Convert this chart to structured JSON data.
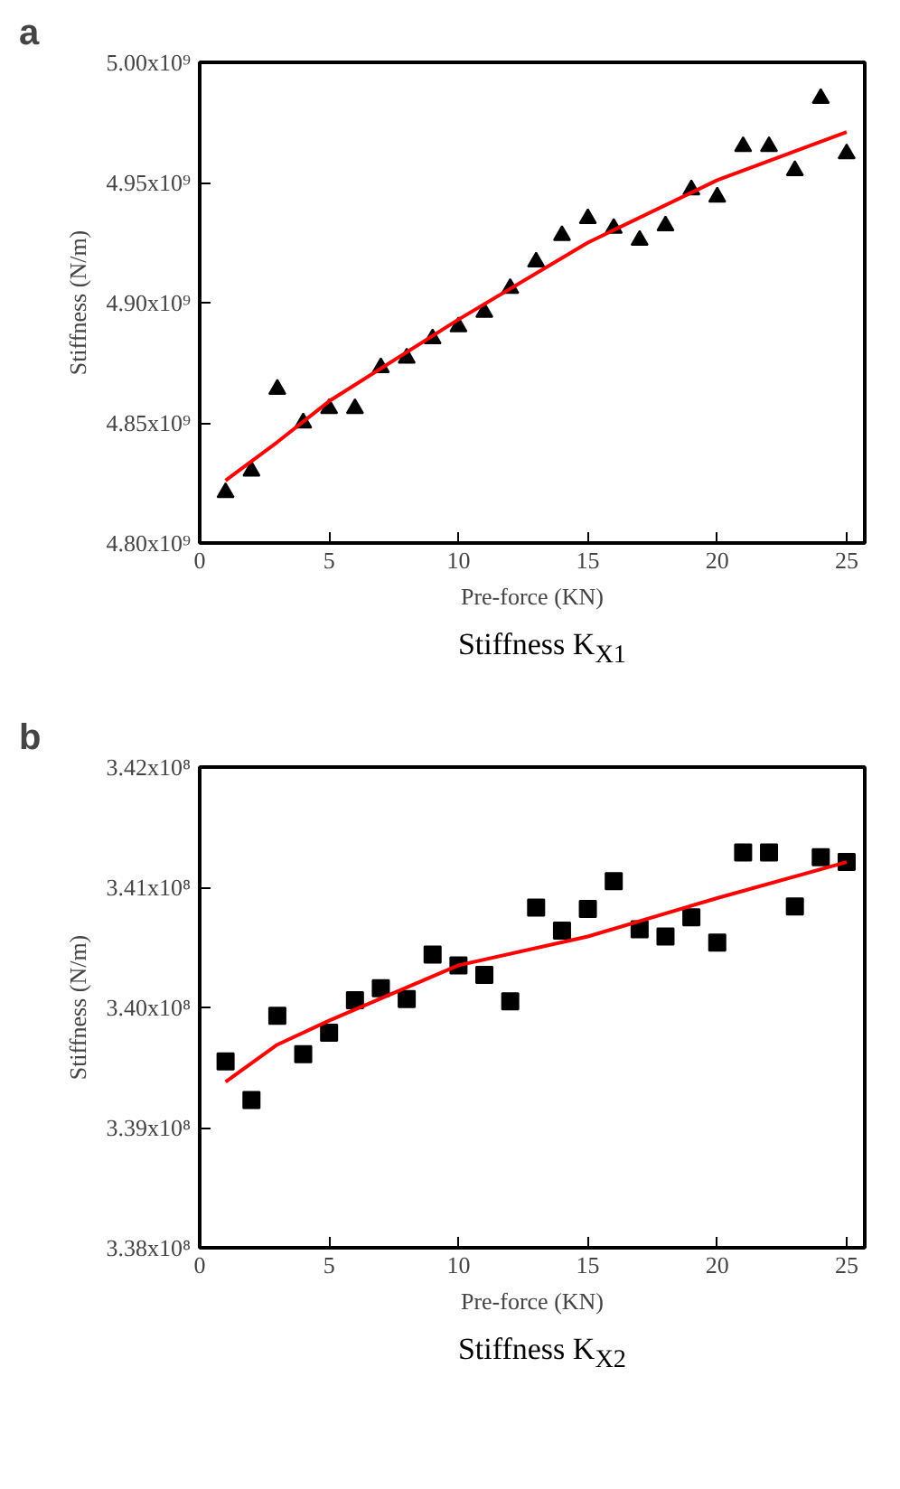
{
  "chart_data": [
    {
      "type": "scatter",
      "title": "a",
      "xlabel": "Pre-force (KN)",
      "ylabel": "Stiffness (N/m)",
      "annotations": [
        "Stiffness K$_{X1}$"
      ],
      "xlim": [
        0,
        25.7
      ],
      "xticks": [
        0,
        5,
        10,
        15,
        20,
        25
      ],
      "ylim": [
        4800000000.0,
        5000000000.0
      ],
      "yticks": [
        {
          "value": 4800000000.0,
          "label": "4.80x10⁹"
        },
        {
          "value": 4850000000.0,
          "label": "4.85x10⁹"
        },
        {
          "value": 4900000000.0,
          "label": "4.90x10⁹"
        },
        {
          "value": 4950000000.0,
          "label": "4.95x10⁹"
        },
        {
          "value": 5000000000.0,
          "label": "5.00x10⁹"
        }
      ],
      "series": [
        {
          "marker": "triangle",
          "color": "#000000",
          "x": [
            1,
            2,
            3,
            4,
            5,
            6,
            7,
            8,
            9,
            10,
            11,
            12,
            13,
            14,
            15,
            16,
            17,
            18,
            19,
            20,
            21,
            22,
            23,
            24,
            25
          ],
          "values": [
            4821000000.0,
            4830000000.0,
            4864000000.0,
            4850000000.0,
            4856000000.0,
            4856000000.0,
            4873000000.0,
            4877000000.0,
            4885000000.0,
            4890000000.0,
            4896000000.0,
            4906000000.0,
            4917000000.0,
            4928000000.0,
            4935000000.0,
            4931000000.0,
            4926000000.0,
            4932000000.0,
            4947000000.0,
            4944000000.0,
            4965000000.0,
            4965000000.0,
            4955000000.0,
            4985000000.0,
            4962000000.0
          ]
        },
        {
          "type": "line",
          "color": "#ff0000",
          "x": [
            1,
            3,
            5,
            10,
            15,
            20,
            25
          ],
          "values": [
            4826000000.0,
            4842000000.0,
            4859000000.0,
            4893000000.0,
            4925000000.0,
            4951000000.0,
            4971000000.0
          ]
        }
      ]
    },
    {
      "type": "scatter",
      "title": "b",
      "xlabel": "Pre-force (KN)",
      "ylabel": "Stiffness (N/m)",
      "annotations": [
        "Stiffness K$_{X2}$"
      ],
      "xlim": [
        0,
        25.7
      ],
      "xticks": [
        0,
        5,
        10,
        15,
        20,
        25
      ],
      "ylim": [
        338000000.0,
        342000000.0
      ],
      "yticks": [
        {
          "value": 338000000.0,
          "label": "3.38x10⁸"
        },
        {
          "value": 339000000.0,
          "label": "3.39x10⁸"
        },
        {
          "value": 340000000.0,
          "label": "3.40x10⁸"
        },
        {
          "value": 341000000.0,
          "label": "3.41x10⁸"
        },
        {
          "value": 342000000.0,
          "label": "3.42x10⁸"
        }
      ],
      "series": [
        {
          "marker": "square",
          "color": "#000000",
          "x": [
            1,
            2,
            3,
            4,
            5,
            6,
            7,
            8,
            9,
            10,
            11,
            12,
            13,
            14,
            15,
            16,
            17,
            18,
            19,
            20,
            21,
            22,
            23,
            24,
            25
          ],
          "values": [
            339550000.0,
            339230000.0,
            339930000.0,
            339610000.0,
            339790000.0,
            340060000.0,
            340160000.0,
            340070000.0,
            340440000.0,
            340350000.0,
            340270000.0,
            340050000.0,
            340830000.0,
            340640000.0,
            340820000.0,
            341050000.0,
            340650000.0,
            340590000.0,
            340750000.0,
            340540000.0,
            341290000.0,
            341290000.0,
            340840000.0,
            341250000.0,
            341210000.0
          ]
        },
        {
          "type": "line",
          "color": "#ff0000",
          "x": [
            1,
            3,
            5,
            10,
            15,
            20,
            25
          ],
          "values": [
            339380000.0,
            339690000.0,
            339890000.0,
            340350000.0,
            340590000.0,
            340910000.0,
            341210000.0
          ]
        }
      ]
    }
  ]
}
